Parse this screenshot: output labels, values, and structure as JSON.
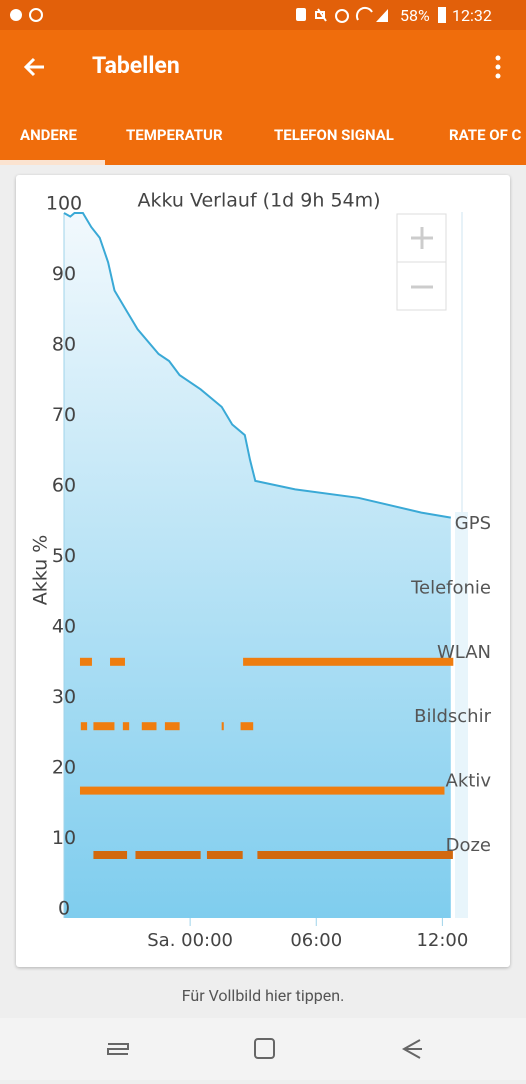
{
  "status_bar": {
    "battery": "58%",
    "time": "12:32"
  },
  "app_bar": {
    "title": "Tabellen"
  },
  "tabs": [
    "ANDERE",
    "TEMPERATUR",
    "TELEFON SIGNAL",
    "RATE OF C"
  ],
  "chart_data": {
    "type": "line",
    "title": "Akku Verlauf (1d 9h 54m)",
    "y_label": "Akku %",
    "x": [
      -6,
      -5.7,
      -5.5,
      -5.1,
      -4.7,
      -4.3,
      -3.9,
      -3.6,
      -3.0,
      -2.5,
      -1.5,
      -1.0,
      -0.5,
      0.5,
      1.5,
      2.0,
      2.6,
      2.85,
      3.1,
      5,
      8,
      11,
      12.4
    ],
    "series": [
      {
        "color": "#3aa9d6",
        "values": [
          100,
          99.5,
          100,
          100,
          98,
          96.5,
          93,
          89,
          86,
          83.5,
          80,
          79,
          77,
          75,
          72.5,
          70,
          68.5,
          65,
          62,
          60.8,
          59.6,
          57.5,
          56.8
        ]
      }
    ],
    "xlim": [
      -6,
      12.6
    ],
    "xticks": [
      {
        "value": 0,
        "label": "Sa. 00:00"
      },
      {
        "value": 6,
        "label": "06:00"
      },
      {
        "value": 12,
        "label": "12:00"
      }
    ],
    "ylim": [
      0,
      100
    ],
    "yticks": [
      0,
      10,
      20,
      30,
      40,
      50,
      60,
      70,
      80,
      90,
      100
    ],
    "lanes": [
      {
        "name": "GPS",
        "color": "#ef7d0f",
        "segments": []
      },
      {
        "name": "Telefonie",
        "color": "#ef7d0f",
        "segments": []
      },
      {
        "name": "WLAN",
        "color": "#ef7d0f",
        "segments": [
          [
            -5.24,
            -4.67
          ],
          [
            -3.81,
            -3.1
          ],
          [
            2.52,
            12.52
          ]
        ]
      },
      {
        "name": "Bildschir",
        "color": "#ef7d0f",
        "segments": [
          [
            -5.2,
            -4.9
          ],
          [
            -4.6,
            -3.6
          ],
          [
            -3.2,
            -2.9
          ],
          [
            -2.3,
            -1.6
          ],
          [
            -1.2,
            -0.5
          ],
          [
            1.5,
            1.6
          ],
          [
            2.4,
            3.0
          ]
        ]
      },
      {
        "name": "Aktiv",
        "color": "#ef7d0f",
        "segments": [
          [
            -5.24,
            12.1
          ]
        ]
      },
      {
        "name": "Doze",
        "color": "#d2690e",
        "segments": [
          [
            -4.6,
            -3.0
          ],
          [
            -2.6,
            0.5
          ],
          [
            0.8,
            2.5
          ],
          [
            3.2,
            12.5
          ]
        ]
      }
    ]
  },
  "footer": {
    "hint": "Für Vollbild hier tippen."
  }
}
